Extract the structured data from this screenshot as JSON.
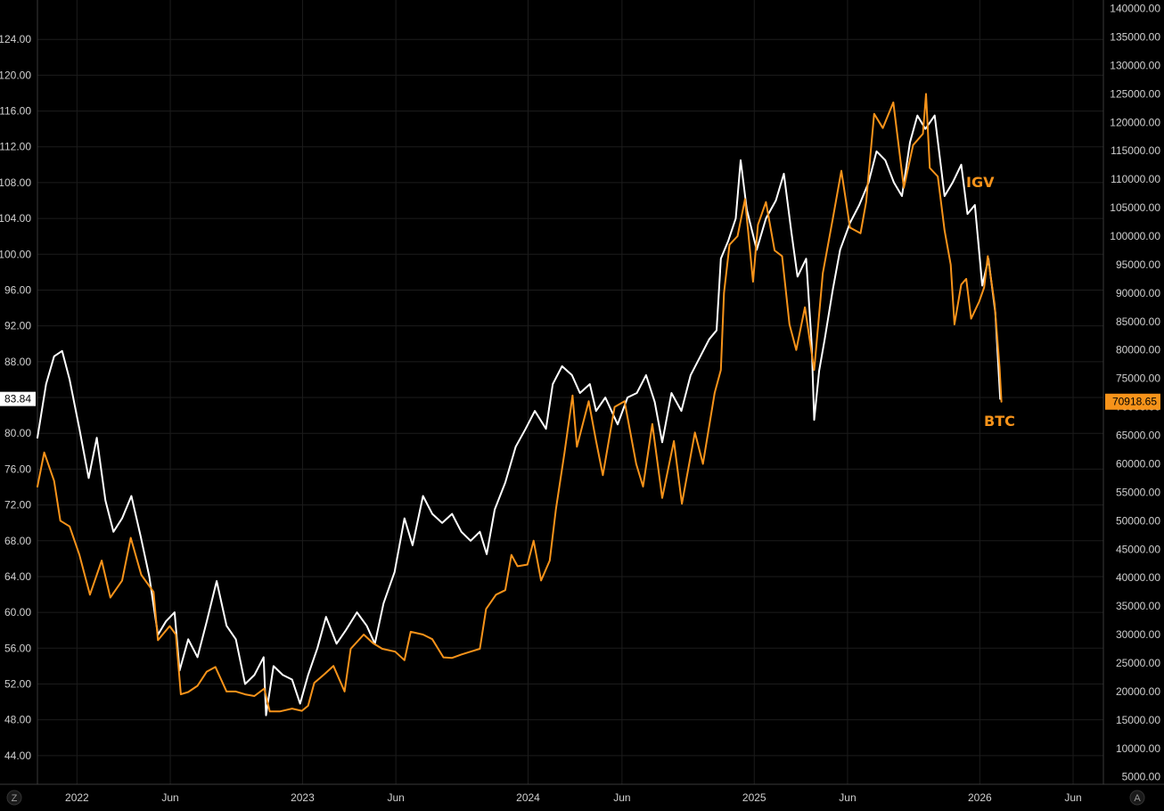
{
  "chart_data": {
    "type": "line",
    "title": "",
    "xlabel": "",
    "ylabel": "",
    "x_range": [
      "2021-10-29",
      "2026-07-20"
    ],
    "x_ticks": [
      {
        "date": "2022-01-01",
        "label": "2022"
      },
      {
        "date": "2022-06-01",
        "label": "Jun"
      },
      {
        "date": "2023-01-01",
        "label": "2023"
      },
      {
        "date": "2023-06-01",
        "label": "Jun"
      },
      {
        "date": "2024-01-01",
        "label": "2024"
      },
      {
        "date": "2024-06-01",
        "label": "Jun"
      },
      {
        "date": "2025-01-01",
        "label": "2025"
      },
      {
        "date": "2025-06-01",
        "label": "Jun"
      },
      {
        "date": "2026-01-01",
        "label": "2026"
      },
      {
        "date": "2026-06-01",
        "label": "Jun"
      }
    ],
    "left_axis": {
      "series": "IGV",
      "ylim": [
        40.8,
        128.4
      ],
      "ticks": [
        "44.00",
        "48.00",
        "52.00",
        "56.00",
        "60.00",
        "64.00",
        "68.00",
        "72.00",
        "76.00",
        "80.00",
        "84.00",
        "88.00",
        "92.00",
        "96.00",
        "100.00",
        "104.00",
        "108.00",
        "112.00",
        "116.00",
        "120.00",
        "124.00"
      ]
    },
    "right_axis": {
      "series": "BTC",
      "ylim": [
        3700,
        141500
      ],
      "ticks": [
        "5000.00",
        "10000.00",
        "15000.00",
        "20000.00",
        "25000.00",
        "30000.00",
        "35000.00",
        "40000.00",
        "45000.00",
        "50000.00",
        "55000.00",
        "60000.00",
        "65000.00",
        "70000.00",
        "75000.00",
        "80000.00",
        "85000.00",
        "90000.00",
        "95000.00",
        "100000.00",
        "105000.00",
        "110000.00",
        "115000.00",
        "120000.00",
        "125000.00",
        "130000.00",
        "135000.00",
        "140000.00"
      ]
    },
    "grid": true,
    "series": [
      {
        "name": "IGV",
        "axis": "left",
        "color": "#ffffff",
        "label_color": "#f7931a",
        "last_value": "83.84",
        "points": [
          [
            "2021-10-29",
            79.5
          ],
          [
            "2021-11-12",
            85.5
          ],
          [
            "2021-11-25",
            88.6
          ],
          [
            "2021-12-08",
            89.2
          ],
          [
            "2021-12-20",
            86.0
          ],
          [
            "2022-01-05",
            80.5
          ],
          [
            "2022-01-20",
            75.0
          ],
          [
            "2022-02-02",
            79.5
          ],
          [
            "2022-02-16",
            72.5
          ],
          [
            "2022-03-01",
            69.0
          ],
          [
            "2022-03-15",
            70.5
          ],
          [
            "2022-03-30",
            73.0
          ],
          [
            "2022-04-14",
            68.5
          ],
          [
            "2022-04-28",
            64.0
          ],
          [
            "2022-05-12",
            57.5
          ],
          [
            "2022-05-25",
            59.0
          ],
          [
            "2022-06-08",
            60.0
          ],
          [
            "2022-06-16",
            53.5
          ],
          [
            "2022-06-30",
            57.0
          ],
          [
            "2022-07-15",
            55.0
          ],
          [
            "2022-07-30",
            59.0
          ],
          [
            "2022-08-15",
            63.5
          ],
          [
            "2022-08-31",
            58.5
          ],
          [
            "2022-09-15",
            57.0
          ],
          [
            "2022-09-30",
            52.0
          ],
          [
            "2022-10-15",
            53.0
          ],
          [
            "2022-10-30",
            55.0
          ],
          [
            "2022-11-03",
            48.5
          ],
          [
            "2022-11-15",
            54.0
          ],
          [
            "2022-11-30",
            53.0
          ],
          [
            "2022-12-15",
            52.5
          ],
          [
            "2022-12-28",
            49.8
          ],
          [
            "2023-01-10",
            53.0
          ],
          [
            "2023-01-25",
            56.0
          ],
          [
            "2023-02-08",
            59.5
          ],
          [
            "2023-02-25",
            56.5
          ],
          [
            "2023-03-12",
            58.0
          ],
          [
            "2023-03-30",
            60.0
          ],
          [
            "2023-04-15",
            58.5
          ],
          [
            "2023-04-28",
            56.5
          ],
          [
            "2023-05-12",
            61.0
          ],
          [
            "2023-05-30",
            64.5
          ],
          [
            "2023-06-15",
            70.5
          ],
          [
            "2023-06-28",
            67.5
          ],
          [
            "2023-07-15",
            73.0
          ],
          [
            "2023-07-30",
            71.0
          ],
          [
            "2023-08-15",
            70.0
          ],
          [
            "2023-08-31",
            71.0
          ],
          [
            "2023-09-15",
            69.0
          ],
          [
            "2023-09-30",
            68.0
          ],
          [
            "2023-10-15",
            69.0
          ],
          [
            "2023-10-26",
            66.5
          ],
          [
            "2023-11-08",
            71.5
          ],
          [
            "2023-11-25",
            74.5
          ],
          [
            "2023-12-12",
            78.5
          ],
          [
            "2023-12-28",
            80.5
          ],
          [
            "2024-01-12",
            82.5
          ],
          [
            "2024-01-30",
            80.5
          ],
          [
            "2024-02-10",
            85.5
          ],
          [
            "2024-02-25",
            87.5
          ],
          [
            "2024-03-12",
            86.5
          ],
          [
            "2024-03-25",
            84.5
          ],
          [
            "2024-04-10",
            85.5
          ],
          [
            "2024-04-20",
            82.5
          ],
          [
            "2024-05-05",
            84.0
          ],
          [
            "2024-05-25",
            81.0
          ],
          [
            "2024-06-10",
            84.0
          ],
          [
            "2024-06-25",
            84.5
          ],
          [
            "2024-07-10",
            86.5
          ],
          [
            "2024-07-24",
            83.5
          ],
          [
            "2024-08-05",
            79.0
          ],
          [
            "2024-08-20",
            84.5
          ],
          [
            "2024-09-05",
            82.5
          ],
          [
            "2024-09-20",
            86.5
          ],
          [
            "2024-10-05",
            88.5
          ],
          [
            "2024-10-20",
            90.5
          ],
          [
            "2024-11-01",
            91.5
          ],
          [
            "2024-11-08",
            99.5
          ],
          [
            "2024-11-20",
            101.5
          ],
          [
            "2024-12-02",
            104.0
          ],
          [
            "2024-12-10",
            110.5
          ],
          [
            "2024-12-20",
            105.0
          ],
          [
            "2025-01-05",
            100.5
          ],
          [
            "2025-01-20",
            104.0
          ],
          [
            "2025-02-05",
            106.0
          ],
          [
            "2025-02-18",
            109.0
          ],
          [
            "2025-03-02",
            102.5
          ],
          [
            "2025-03-12",
            97.5
          ],
          [
            "2025-03-26",
            99.5
          ],
          [
            "2025-04-04",
            90.0
          ],
          [
            "2025-04-08",
            81.5
          ],
          [
            "2025-04-16",
            87.0
          ],
          [
            "2025-04-25",
            90.5
          ],
          [
            "2025-05-08",
            96.0
          ],
          [
            "2025-05-20",
            100.5
          ],
          [
            "2025-06-05",
            103.5
          ],
          [
            "2025-06-20",
            105.5
          ],
          [
            "2025-07-05",
            108.0
          ],
          [
            "2025-07-18",
            111.5
          ],
          [
            "2025-08-01",
            110.5
          ],
          [
            "2025-08-15",
            108.0
          ],
          [
            "2025-08-28",
            106.5
          ],
          [
            "2025-09-10",
            112.5
          ],
          [
            "2025-09-22",
            115.5
          ],
          [
            "2025-10-05",
            114.0
          ],
          [
            "2025-10-20",
            115.5
          ],
          [
            "2025-11-05",
            106.5
          ],
          [
            "2025-11-18",
            108.0
          ],
          [
            "2025-12-02",
            110.0
          ],
          [
            "2025-12-12",
            104.5
          ],
          [
            "2025-12-24",
            105.5
          ],
          [
            "2026-01-05",
            96.5
          ],
          [
            "2026-01-15",
            99.5
          ],
          [
            "2026-01-26",
            93.5
          ],
          [
            "2026-02-03",
            83.84
          ]
        ]
      },
      {
        "name": "BTC",
        "axis": "right",
        "color": "#f7931a",
        "label_color": "#f7931a",
        "last_value": "70918.65",
        "points": [
          [
            "2021-10-29",
            56000
          ],
          [
            "2021-11-09",
            62000
          ],
          [
            "2021-11-25",
            57000
          ],
          [
            "2021-12-05",
            50000
          ],
          [
            "2021-12-20",
            49000
          ],
          [
            "2022-01-05",
            44000
          ],
          [
            "2022-01-22",
            37000
          ],
          [
            "2022-02-10",
            43000
          ],
          [
            "2022-02-24",
            36500
          ],
          [
            "2022-03-15",
            39500
          ],
          [
            "2022-03-29",
            47000
          ],
          [
            "2022-04-15",
            40500
          ],
          [
            "2022-05-05",
            37500
          ],
          [
            "2022-05-12",
            29000
          ],
          [
            "2022-05-31",
            31500
          ],
          [
            "2022-06-10",
            30000
          ],
          [
            "2022-06-18",
            19500
          ],
          [
            "2022-06-30",
            19900
          ],
          [
            "2022-07-15",
            21000
          ],
          [
            "2022-07-30",
            23500
          ],
          [
            "2022-08-13",
            24300
          ],
          [
            "2022-08-31",
            20000
          ],
          [
            "2022-09-15",
            20000
          ],
          [
            "2022-09-30",
            19500
          ],
          [
            "2022-10-15",
            19200
          ],
          [
            "2022-10-31",
            20500
          ],
          [
            "2022-11-09",
            16500
          ],
          [
            "2022-11-25",
            16500
          ],
          [
            "2022-12-15",
            17000
          ],
          [
            "2022-12-31",
            16600
          ],
          [
            "2023-01-10",
            17500
          ],
          [
            "2023-01-20",
            21500
          ],
          [
            "2023-02-05",
            23000
          ],
          [
            "2023-02-20",
            24500
          ],
          [
            "2023-03-10",
            20000
          ],
          [
            "2023-03-20",
            27500
          ],
          [
            "2023-04-10",
            30000
          ],
          [
            "2023-04-25",
            28500
          ],
          [
            "2023-05-10",
            27500
          ],
          [
            "2023-05-31",
            27000
          ],
          [
            "2023-06-15",
            25500
          ],
          [
            "2023-06-25",
            30500
          ],
          [
            "2023-07-15",
            30000
          ],
          [
            "2023-07-30",
            29200
          ],
          [
            "2023-08-17",
            26000
          ],
          [
            "2023-08-31",
            25900
          ],
          [
            "2023-09-15",
            26500
          ],
          [
            "2023-09-30",
            27000
          ],
          [
            "2023-10-15",
            27500
          ],
          [
            "2023-10-25",
            34500
          ],
          [
            "2023-11-10",
            37000
          ],
          [
            "2023-11-25",
            37800
          ],
          [
            "2023-12-05",
            44000
          ],
          [
            "2023-12-15",
            42000
          ],
          [
            "2023-12-31",
            42300
          ],
          [
            "2024-01-10",
            46500
          ],
          [
            "2024-01-22",
            39500
          ],
          [
            "2024-02-05",
            43000
          ],
          [
            "2024-02-15",
            52000
          ],
          [
            "2024-02-29",
            62000
          ],
          [
            "2024-03-13",
            72000
          ],
          [
            "2024-03-20",
            63000
          ],
          [
            "2024-04-08",
            71000
          ],
          [
            "2024-04-20",
            64000
          ],
          [
            "2024-05-01",
            58000
          ],
          [
            "2024-05-20",
            70000
          ],
          [
            "2024-06-05",
            71000
          ],
          [
            "2024-06-24",
            60000
          ],
          [
            "2024-07-05",
            56000
          ],
          [
            "2024-07-20",
            67000
          ],
          [
            "2024-08-05",
            54000
          ],
          [
            "2024-08-24",
            64000
          ],
          [
            "2024-09-06",
            53000
          ],
          [
            "2024-09-27",
            65500
          ],
          [
            "2024-10-10",
            60000
          ],
          [
            "2024-10-29",
            72500
          ],
          [
            "2024-11-08",
            76500
          ],
          [
            "2024-11-13",
            90000
          ],
          [
            "2024-11-22",
            98500
          ],
          [
            "2024-12-05",
            100000
          ],
          [
            "2024-12-17",
            106500
          ],
          [
            "2024-12-30",
            92000
          ],
          [
            "2025-01-07",
            102000
          ],
          [
            "2025-01-20",
            106000
          ],
          [
            "2025-02-03",
            97500
          ],
          [
            "2025-02-15",
            96500
          ],
          [
            "2025-02-27",
            84500
          ],
          [
            "2025-03-10",
            80000
          ],
          [
            "2025-03-24",
            87500
          ],
          [
            "2025-04-08",
            76500
          ],
          [
            "2025-04-22",
            93500
          ],
          [
            "2025-05-08",
            103000
          ],
          [
            "2025-05-22",
            111500
          ],
          [
            "2025-06-05",
            101500
          ],
          [
            "2025-06-22",
            100500
          ],
          [
            "2025-07-01",
            106000
          ],
          [
            "2025-07-14",
            121500
          ],
          [
            "2025-07-28",
            119000
          ],
          [
            "2025-08-14",
            123500
          ],
          [
            "2025-08-31",
            108500
          ],
          [
            "2025-09-15",
            116000
          ],
          [
            "2025-10-01",
            118000
          ],
          [
            "2025-10-06",
            125000
          ],
          [
            "2025-10-12",
            112000
          ],
          [
            "2025-10-25",
            110500
          ],
          [
            "2025-11-05",
            101000
          ],
          [
            "2025-11-15",
            95000
          ],
          [
            "2025-11-21",
            84500
          ],
          [
            "2025-12-02",
            91500
          ],
          [
            "2025-12-10",
            92500
          ],
          [
            "2025-12-18",
            85500
          ],
          [
            "2025-12-31",
            88500
          ],
          [
            "2026-01-08",
            91000
          ],
          [
            "2026-01-14",
            96500
          ],
          [
            "2026-01-25",
            88000
          ],
          [
            "2026-02-02",
            77000
          ],
          [
            "2026-02-05",
            70918.65
          ]
        ]
      }
    ],
    "corner_buttons": {
      "left": "Z",
      "right": "A"
    }
  }
}
